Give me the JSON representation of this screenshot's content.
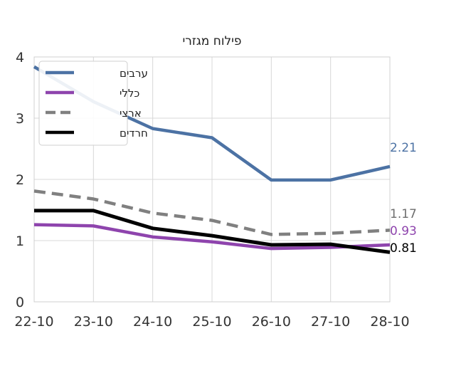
{
  "chart_data": {
    "type": "line",
    "title": "פילוח מגזרי",
    "xlabel": "",
    "ylabel": "",
    "categories": [
      "22-10",
      "23-10",
      "24-10",
      "25-10",
      "26-10",
      "27-10",
      "28-10"
    ],
    "ylim": [
      0,
      4
    ],
    "yticks": [
      "0",
      "1",
      "2",
      "3",
      "4"
    ],
    "grid": true,
    "legend_position": "top-left",
    "series": [
      {
        "name": "ערבים",
        "values": [
          3.84,
          3.27,
          2.83,
          2.68,
          1.99,
          1.99,
          2.21
        ],
        "color": "#4c72a4",
        "dash": "solid",
        "end_label": "2.21"
      },
      {
        "name": "כללי",
        "values": [
          1.26,
          1.24,
          1.06,
          0.98,
          0.87,
          0.89,
          0.93
        ],
        "color": "#8e44ad",
        "dash": "solid",
        "end_label": "0.93"
      },
      {
        "name": "ארצי",
        "values": [
          1.81,
          1.68,
          1.45,
          1.33,
          1.1,
          1.12,
          1.17
        ],
        "color": "#808080",
        "dash": "dashed",
        "end_label": "1.17"
      },
      {
        "name": "חרדים",
        "values": [
          1.49,
          1.49,
          1.2,
          1.08,
          0.93,
          0.94,
          0.81
        ],
        "color": "#000000",
        "dash": "solid",
        "end_label": "0.81"
      }
    ]
  }
}
